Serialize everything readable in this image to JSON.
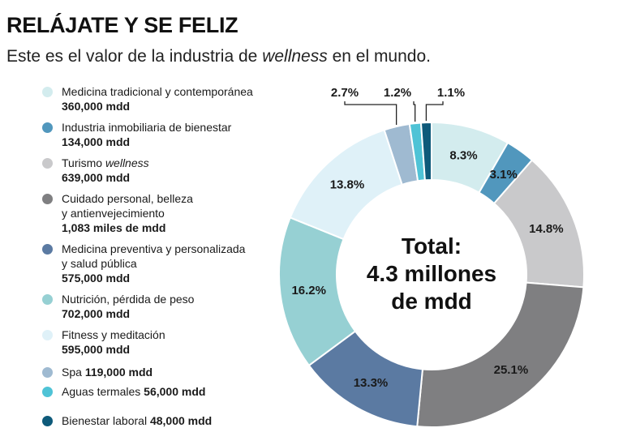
{
  "header": {
    "title": "RELÁJATE Y SE FELIZ",
    "subtitle_pre": "Este es el valor de la industria de ",
    "subtitle_em": "wellness",
    "subtitle_post": " en el mundo."
  },
  "legend": [
    {
      "line1": "Medicina tradicional y contemporánea",
      "line1_em": "",
      "line2": "",
      "value": "360,000 mdd",
      "value_inline": false,
      "color": "#d3ecee"
    },
    {
      "line1": "Industria inmobiliaria de bienestar",
      "line1_em": "",
      "line2": "",
      "value": "134,000 mdd",
      "value_inline": false,
      "color": "#5197bd"
    },
    {
      "line1": "Turismo ",
      "line1_em": "wellness",
      "line2": "",
      "value": "639,000 mdd",
      "value_inline": false,
      "color": "#c9c9cb"
    },
    {
      "line1": "Cuidado personal, belleza",
      "line1_em": "",
      "line2": "y antienvejecimiento",
      "value": "1,083 miles de mdd",
      "value_inline": false,
      "color": "#7f7f81"
    },
    {
      "line1": "Medicina preventiva y personalizada",
      "line1_em": "",
      "line2": " y salud pública",
      "value": "575,000 mdd",
      "value_inline": false,
      "color": "#5b7aa2"
    },
    {
      "line1": "Nutrición, pérdida de peso",
      "line1_em": "",
      "line2": "",
      "value": "702,000 mdd",
      "value_inline": false,
      "color": "#96d0d3"
    },
    {
      "line1": "Fitness y meditación",
      "line1_em": "",
      "line2": "",
      "value": "595,000 mdd",
      "value_inline": false,
      "color": "#dff1f8"
    },
    {
      "line1": "Spa ",
      "line1_em": "",
      "line2": "",
      "value": "119,000 mdd",
      "value_inline": true,
      "color": "#9fbad1"
    },
    {
      "line1": "Aguas termales ",
      "line1_em": "",
      "line2": "",
      "value": "56,000 mdd",
      "value_inline": true,
      "color": "#4fc3d6"
    },
    {
      "line1": "Bienestar laboral ",
      "line1_em": "",
      "line2": "",
      "value": "48,000 mdd",
      "value_inline": true,
      "color": "#0e5a7a"
    }
  ],
  "chart_data": {
    "type": "pie",
    "title": "",
    "center_label": [
      "Total:",
      "4.3 millones",
      "de mdd"
    ],
    "categories": [
      "Medicina tradicional y contemporánea",
      "Industria inmobiliaria de bienestar",
      "Turismo wellness",
      "Cuidado personal, belleza y antienvejecimiento",
      "Medicina preventiva y personalizada y salud pública",
      "Nutrición, pérdida de peso",
      "Fitness y meditación",
      "Spa",
      "Aguas termales",
      "Bienestar laboral"
    ],
    "values": [
      8.3,
      3.1,
      14.8,
      25.1,
      13.3,
      16.2,
      13.8,
      2.7,
      1.2,
      1.1
    ],
    "value_labels": [
      "8.3%",
      "3.1%",
      "14.8%",
      "25.1%",
      "13.3%",
      "16.2%",
      "13.8%",
      "2.7%",
      "1.2%",
      "1.1%"
    ],
    "amounts": [
      "360,000 mdd",
      "134,000 mdd",
      "639,000 mdd",
      "1,083 miles de mdd",
      "575,000 mdd",
      "702,000 mdd",
      "595,000 mdd",
      "119,000 mdd",
      "56,000 mdd",
      "48,000 mdd"
    ],
    "colors": [
      "#d3ecee",
      "#5197bd",
      "#c9c9cb",
      "#7f7f81",
      "#5b7aa2",
      "#96d0d3",
      "#dff1f8",
      "#9fbad1",
      "#4fc3d6",
      "#0e5a7a"
    ],
    "donut": true,
    "start": "top, clockwise",
    "label_inside": [
      true,
      true,
      true,
      true,
      true,
      true,
      true,
      false,
      false,
      false
    ]
  }
}
